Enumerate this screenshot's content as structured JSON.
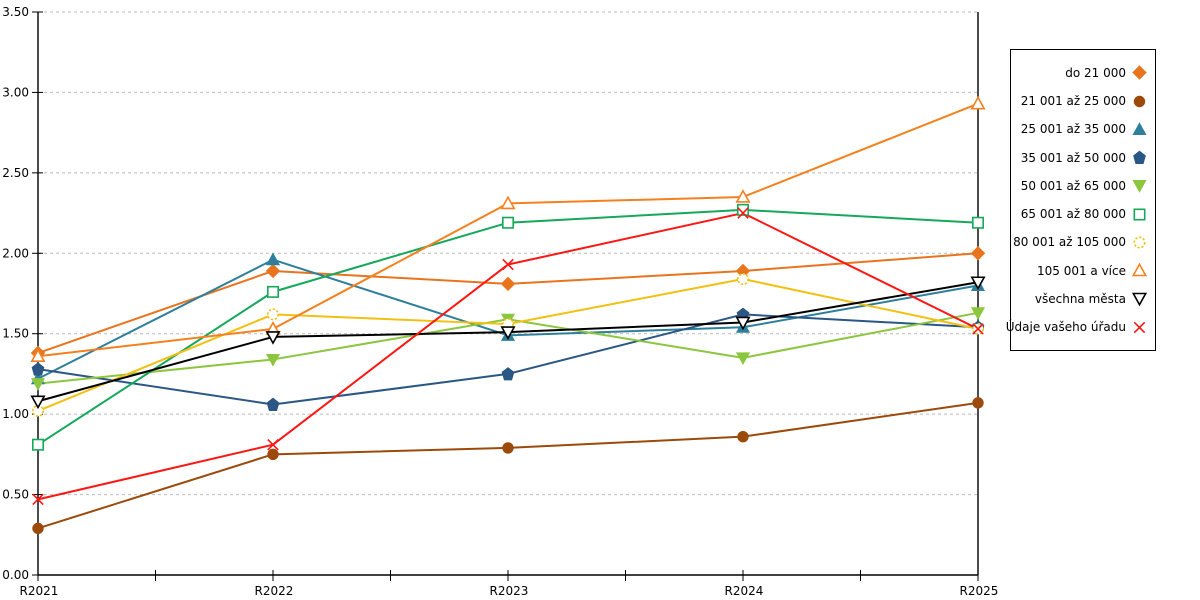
{
  "chart_data": {
    "type": "line",
    "title": "",
    "xlabel": "",
    "ylabel": "",
    "categories": [
      "R2021",
      "R2022",
      "R2023",
      "R2024",
      "R2025"
    ],
    "ylim": [
      0,
      3.5
    ],
    "ytick_step": 0.5,
    "ytick_labels": [
      "0.00",
      "0.50",
      "1.00",
      "1.50",
      "2.00",
      "2.50",
      "3.00",
      "3.50"
    ],
    "grid": "horizontal-dashed",
    "legend_position": "right-outside",
    "series": [
      {
        "name": "do 21 000",
        "marker": "diamond",
        "fill": "filled",
        "color": "#E8741E",
        "values": [
          1.38,
          1.89,
          1.81,
          1.89,
          2.0
        ]
      },
      {
        "name": "21 001 až 25 000",
        "marker": "circle",
        "fill": "filled",
        "color": "#9B4A0B",
        "values": [
          0.29,
          0.75,
          0.79,
          0.86,
          1.07
        ]
      },
      {
        "name": "25 001 až 35 000",
        "marker": "triangle-up",
        "fill": "filled",
        "color": "#2E7F9B",
        "values": [
          1.22,
          1.96,
          1.49,
          1.54,
          1.8
        ]
      },
      {
        "name": "35 001 až 50 000",
        "marker": "pentagon",
        "fill": "filled",
        "color": "#2A5783",
        "values": [
          1.28,
          1.06,
          1.25,
          1.62,
          1.54
        ]
      },
      {
        "name": "50 001 až 65 000",
        "marker": "triangle-down",
        "fill": "filled",
        "color": "#8CC63E",
        "values": [
          1.19,
          1.34,
          1.59,
          1.35,
          1.63
        ]
      },
      {
        "name": "65 001 až 80 000",
        "marker": "square",
        "fill": "open",
        "color": "#16A85A",
        "values": [
          0.81,
          1.76,
          2.19,
          2.27,
          2.19
        ]
      },
      {
        "name": "80 001 až 105 000",
        "marker": "circle",
        "fill": "open",
        "marker_style": "dashed",
        "color": "#F2C011",
        "values": [
          1.02,
          1.62,
          1.56,
          1.84,
          1.53
        ]
      },
      {
        "name": "105 001 a více",
        "marker": "triangle-up",
        "fill": "open",
        "color": "#F5801E",
        "values": [
          1.36,
          1.53,
          2.31,
          2.35,
          2.93
        ]
      },
      {
        "name": "všechna města",
        "marker": "triangle-down",
        "fill": "open",
        "color": "#000000",
        "values": [
          1.08,
          1.48,
          1.51,
          1.57,
          1.82
        ]
      },
      {
        "name": "Údaje vašeho úřadu",
        "marker": "x",
        "fill": "open",
        "color": "#FE1612",
        "values": [
          0.47,
          0.81,
          1.93,
          2.25,
          1.53
        ]
      }
    ]
  },
  "colors": {
    "gridline": "#bbbbbb",
    "axis": "#000000",
    "background": "#ffffff"
  }
}
